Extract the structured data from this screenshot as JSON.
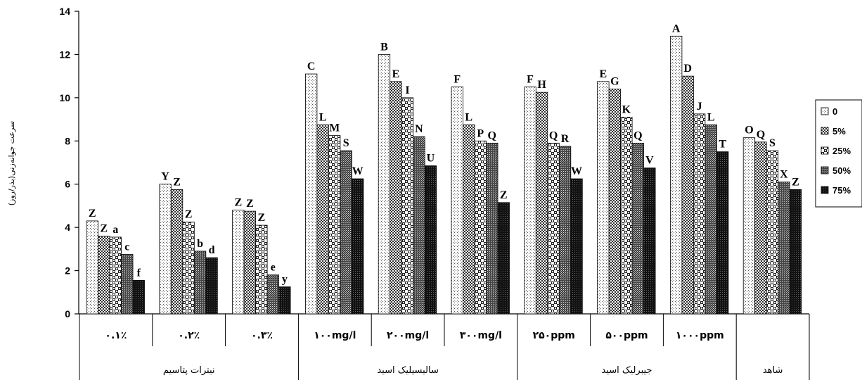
{
  "chart_data": {
    "type": "bar",
    "ylabel": "سرعت جوانه‌زنی(بذر/روز)",
    "ylim": [
      0,
      14
    ],
    "yticks": [
      "0",
      "2",
      "4",
      "6",
      "8",
      "10",
      "12",
      "14"
    ],
    "grid": false,
    "legend_position": "right",
    "categories": [
      "٠.١٪",
      "٠.٢٪",
      "٠.٣٪",
      "١٠٠mg/l",
      "٢٠٠mg/l",
      "٣٠٠mg/l",
      "٢۵٠ppm",
      "۵٠٠ppm",
      "١٠٠٠ppm",
      ""
    ],
    "groups": [
      {
        "name": "نیترات پتاسیم",
        "span": 3
      },
      {
        "name": "سالیسیلیک اسید",
        "span": 3
      },
      {
        "name": "جیبرلیک اسید",
        "span": 3
      },
      {
        "name": "شاهد",
        "span": 1
      }
    ],
    "series": [
      {
        "name": "0",
        "pattern": "dots",
        "values": [
          4.3,
          6.0,
          4.8,
          11.1,
          12.0,
          10.5,
          10.5,
          10.75,
          12.85,
          8.15
        ],
        "labels": [
          "Z",
          "Y",
          "Z",
          "C",
          "B",
          "F",
          "F",
          "E",
          "A",
          "O"
        ]
      },
      {
        "name": "5%",
        "pattern": "checker",
        "values": [
          3.6,
          5.75,
          4.75,
          8.75,
          10.75,
          8.75,
          10.25,
          10.4,
          11.0,
          7.95
        ],
        "labels": [
          "Z",
          "Z",
          "Z",
          "L",
          "E",
          "L",
          "H",
          "G",
          "D",
          "Q"
        ]
      },
      {
        "name": "25%",
        "pattern": "bigchecker",
        "values": [
          3.55,
          4.25,
          4.1,
          8.25,
          10.0,
          8.0,
          7.9,
          9.1,
          9.25,
          7.55
        ],
        "labels": [
          "a",
          "Z",
          "Z",
          "M",
          "I",
          "P",
          "Q",
          "K",
          "J",
          "S"
        ]
      },
      {
        "name": "50%",
        "pattern": "finechecker",
        "values": [
          2.75,
          2.9,
          1.8,
          7.55,
          8.2,
          7.9,
          7.75,
          7.9,
          8.75,
          6.1
        ],
        "labels": [
          "c",
          "b",
          "e",
          "S",
          "N",
          "Q",
          "R",
          "Q",
          "L",
          "X"
        ]
      },
      {
        "name": "75%",
        "pattern": "dense",
        "values": [
          1.55,
          2.6,
          1.25,
          6.25,
          6.85,
          5.15,
          6.25,
          6.75,
          7.5,
          5.75
        ],
        "labels": [
          "f",
          "d",
          "y",
          "W",
          "U",
          "Z",
          "W",
          "V",
          "T",
          "Z"
        ]
      }
    ]
  }
}
